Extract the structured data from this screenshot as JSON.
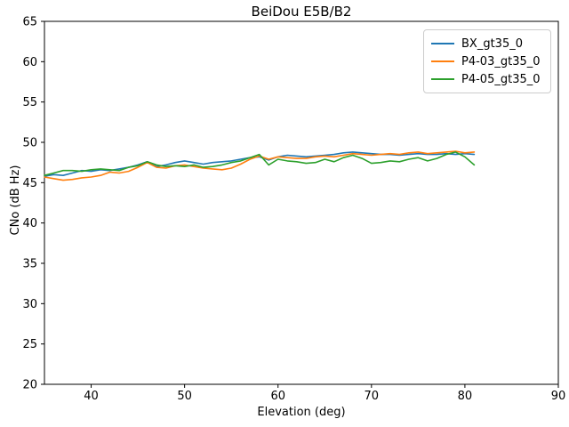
{
  "chart_data": {
    "type": "line",
    "title": "BeiDou E5B/B2",
    "xlabel": "Elevation (deg)",
    "ylabel": "CNo (dB Hz)",
    "xlim": [
      35,
      90
    ],
    "ylim": [
      20,
      65
    ],
    "xticks": [
      40,
      50,
      60,
      70,
      80,
      90
    ],
    "yticks": [
      20,
      25,
      30,
      35,
      40,
      45,
      50,
      55,
      60,
      65
    ],
    "grid": false,
    "legend_position": "upper right",
    "x": [
      35,
      36,
      37,
      38,
      39,
      40,
      41,
      42,
      43,
      44,
      45,
      46,
      47,
      48,
      49,
      50,
      51,
      52,
      53,
      54,
      55,
      56,
      57,
      58,
      59,
      60,
      61,
      62,
      63,
      64,
      65,
      66,
      67,
      68,
      69,
      70,
      71,
      72,
      73,
      74,
      75,
      76,
      77,
      78,
      79,
      80,
      81
    ],
    "series": [
      {
        "name": "BX_gt35_0",
        "color": "#1f77b4",
        "values": [
          45.8,
          46.0,
          45.9,
          46.2,
          46.5,
          46.4,
          46.6,
          46.5,
          46.7,
          46.9,
          47.2,
          47.6,
          47.0,
          47.2,
          47.5,
          47.7,
          47.5,
          47.3,
          47.5,
          47.6,
          47.7,
          47.9,
          48.1,
          48.2,
          47.8,
          48.2,
          48.4,
          48.3,
          48.2,
          48.3,
          48.4,
          48.5,
          48.7,
          48.8,
          48.7,
          48.6,
          48.5,
          48.5,
          48.4,
          48.5,
          48.6,
          48.5,
          48.5,
          48.6,
          48.5,
          48.6,
          48.5
        ]
      },
      {
        "name": "P4-03_gt35_0",
        "color": "#ff7f0e",
        "values": [
          45.7,
          45.5,
          45.3,
          45.4,
          45.6,
          45.7,
          45.9,
          46.3,
          46.2,
          46.4,
          46.9,
          47.5,
          46.9,
          46.8,
          47.1,
          47.2,
          47.0,
          46.8,
          46.7,
          46.6,
          46.8,
          47.3,
          47.9,
          48.3,
          47.9,
          48.2,
          48.1,
          48.0,
          48.0,
          48.2,
          48.3,
          48.2,
          48.4,
          48.6,
          48.5,
          48.4,
          48.5,
          48.6,
          48.5,
          48.7,
          48.8,
          48.6,
          48.7,
          48.8,
          48.9,
          48.7,
          48.8
        ]
      },
      {
        "name": "P4-05_gt35_0",
        "color": "#2ca02c",
        "values": [
          45.9,
          46.2,
          46.5,
          46.5,
          46.4,
          46.6,
          46.7,
          46.6,
          46.5,
          46.9,
          47.1,
          47.6,
          47.2,
          47.0,
          47.1,
          47.0,
          47.2,
          46.9,
          47.0,
          47.2,
          47.5,
          47.7,
          48.1,
          48.5,
          47.2,
          47.9,
          47.7,
          47.6,
          47.4,
          47.5,
          47.9,
          47.6,
          48.1,
          48.4,
          48.0,
          47.4,
          47.5,
          47.7,
          47.6,
          47.9,
          48.1,
          47.7,
          48.0,
          48.5,
          48.8,
          48.2,
          47.2
        ]
      }
    ]
  }
}
